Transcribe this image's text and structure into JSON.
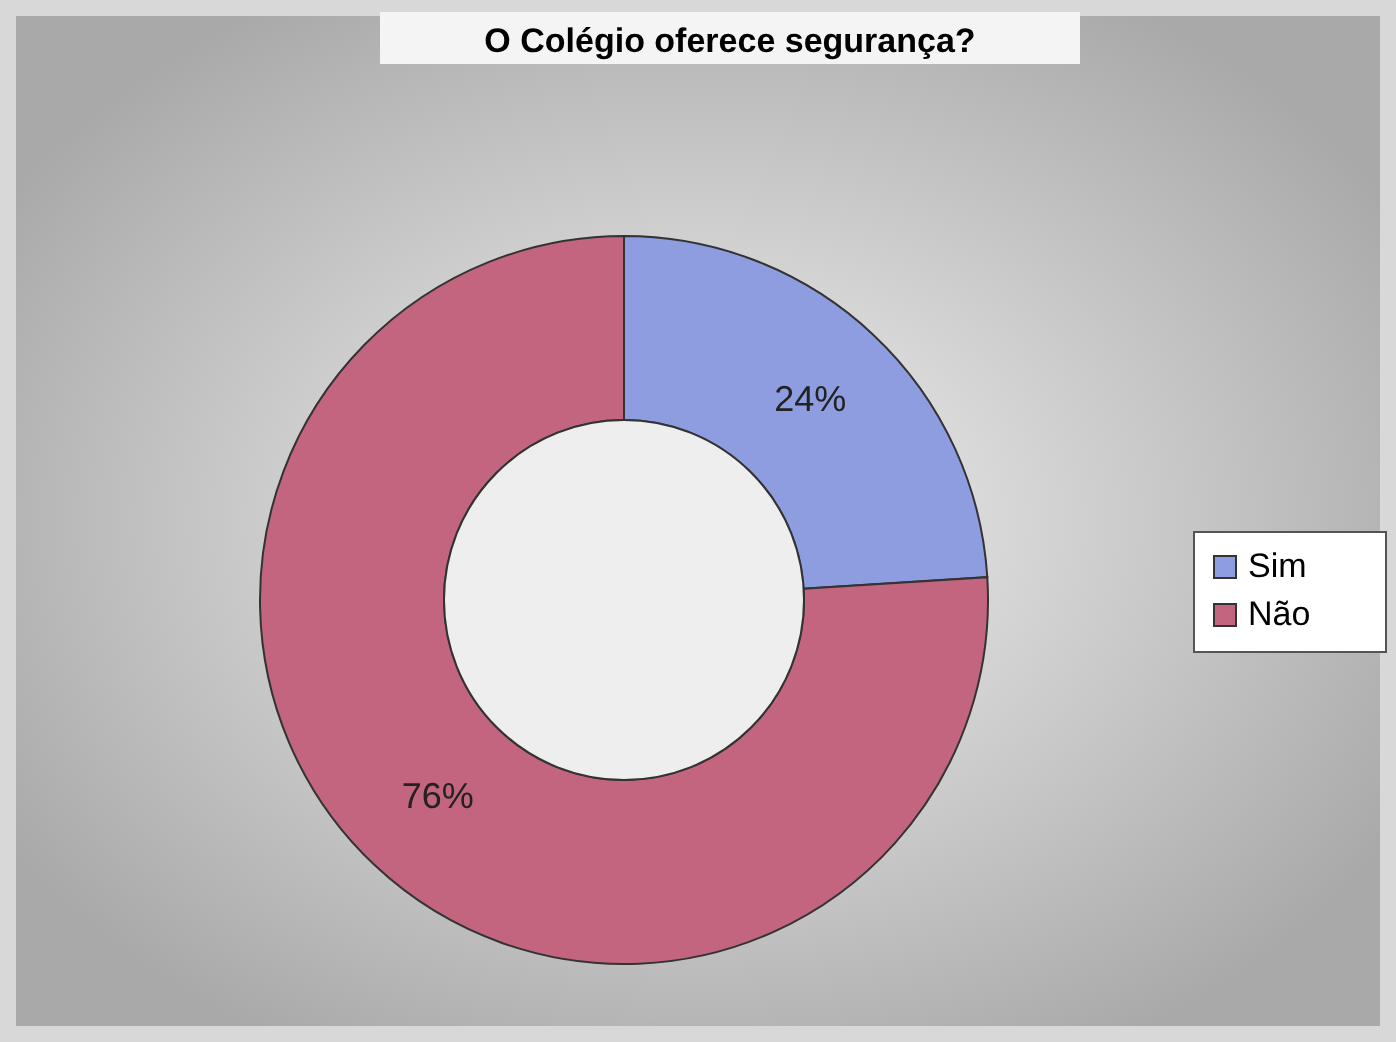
{
  "chart_data": {
    "type": "donut",
    "title": "O Colégio oferece segurança?",
    "categories": [
      "Sim",
      "Não"
    ],
    "values": [
      24,
      76
    ],
    "colors": [
      "#8e9ce0",
      "#c3657f"
    ],
    "value_labels": [
      "24%",
      "76%"
    ],
    "legend": "right"
  }
}
